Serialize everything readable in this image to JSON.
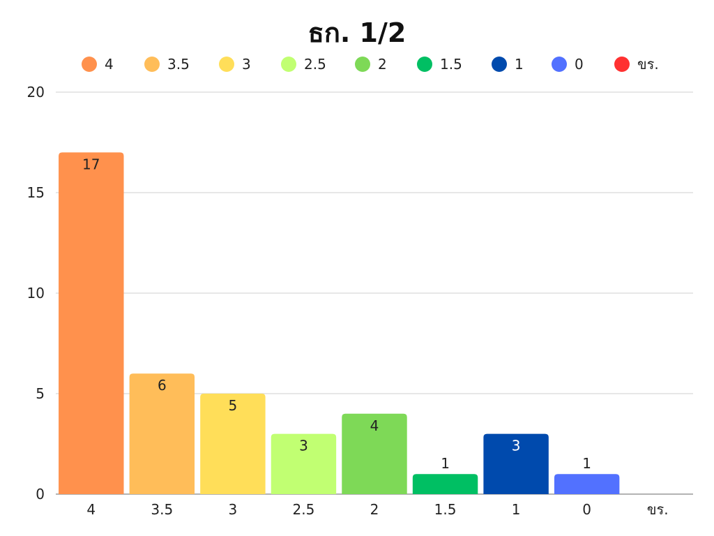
{
  "chart_data": {
    "type": "bar",
    "title": "ธก. 1/2",
    "xlabel": "",
    "ylabel": "",
    "categories": [
      "4",
      "3.5",
      "3",
      "2.5",
      "2",
      "1.5",
      "1",
      "0",
      "ขร."
    ],
    "values": [
      17,
      6,
      5,
      3,
      4,
      1,
      3,
      1,
      0
    ],
    "data_labels": [
      "17",
      "6",
      "5",
      "3",
      "4",
      "1",
      "3",
      "1",
      ""
    ],
    "colors": [
      "#FF914D",
      "#FFBD59",
      "#FFDE59",
      "#C1FF72",
      "#7ED957",
      "#00BF63",
      "#004AAD",
      "#5271FF",
      "#FF3131"
    ],
    "label_colors": [
      "#222222",
      "#222222",
      "#222222",
      "#222222",
      "#222222",
      "#222222",
      "#ffffff",
      "#222222",
      "#222222"
    ],
    "label_outside": [
      false,
      false,
      false,
      false,
      false,
      true,
      false,
      true,
      false
    ],
    "ylim": [
      0,
      20
    ],
    "yticks": [
      0,
      5,
      10,
      15,
      20
    ],
    "grid": true,
    "legend": {
      "position": "top",
      "entries": [
        "4",
        "3.5",
        "3",
        "2.5",
        "2",
        "1.5",
        "1",
        "0",
        "ขร."
      ]
    }
  }
}
